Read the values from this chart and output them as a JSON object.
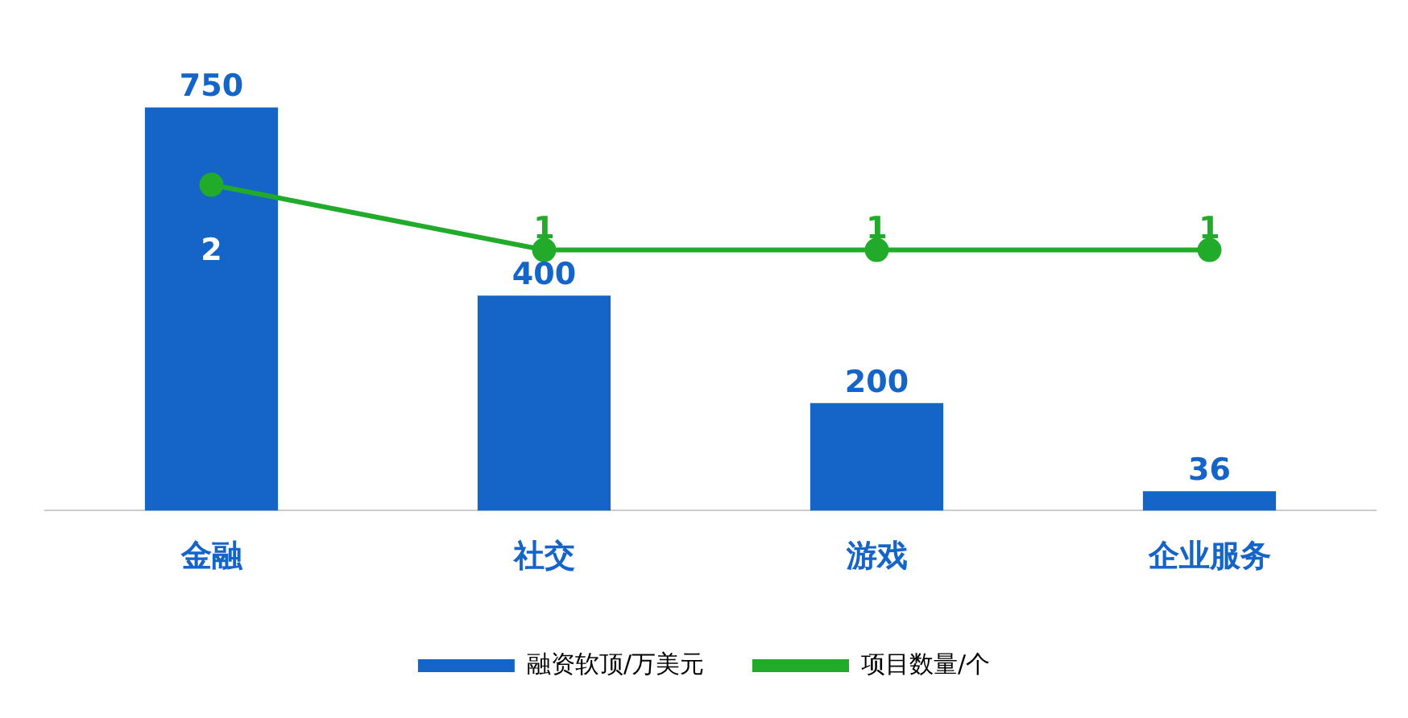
{
  "chart_data": {
    "type": "bar",
    "categories": [
      "金融",
      "社交",
      "游戏",
      "企业服务"
    ],
    "series": [
      {
        "name": "融资软顶/万美元",
        "color": "#1565c8",
        "values": [
          750,
          400,
          200,
          36
        ]
      },
      {
        "name": "项目数量/个",
        "type": "line",
        "axis": "y2",
        "color": "#22aa2a",
        "values": [
          2,
          1,
          1,
          1
        ]
      }
    ],
    "data_labels": true,
    "legend": "bottom",
    "grid": false,
    "tick_labels": "x",
    "marker": "circle",
    "line_style": "solid"
  }
}
